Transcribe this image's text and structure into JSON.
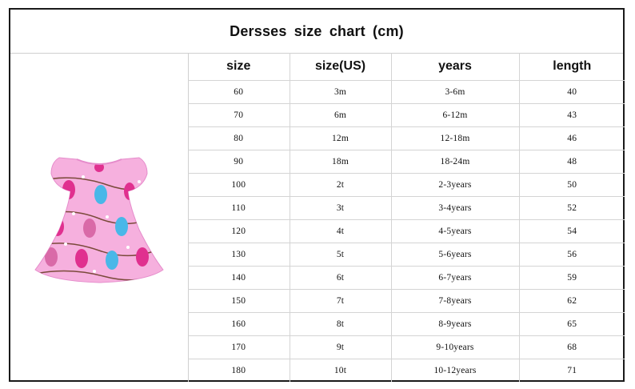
{
  "title": "Dersses  size   chart (cm)",
  "image": {
    "icon": "pink-sloth-dress-icon",
    "main_color": "#f6b0de",
    "accent_colors": [
      "#e0308f",
      "#49b7e8",
      "#7a4a3a"
    ]
  },
  "table": {
    "headers": [
      "size",
      "size(US)",
      "years",
      "length"
    ],
    "rows": [
      [
        "60",
        "3m",
        "3-6m",
        "40"
      ],
      [
        "70",
        "6m",
        "6-12m",
        "43"
      ],
      [
        "80",
        "12m",
        "12-18m",
        "46"
      ],
      [
        "90",
        "18m",
        "18-24m",
        "48"
      ],
      [
        "100",
        "2t",
        "2-3years",
        "50"
      ],
      [
        "110",
        "3t",
        "3-4years",
        "52"
      ],
      [
        "120",
        "4t",
        "4-5years",
        "54"
      ],
      [
        "130",
        "5t",
        "5-6years",
        "56"
      ],
      [
        "140",
        "6t",
        "6-7years",
        "59"
      ],
      [
        "150",
        "7t",
        "7-8years",
        "62"
      ],
      [
        "160",
        "8t",
        "8-9years",
        "65"
      ],
      [
        "170",
        "9t",
        "9-10years",
        "68"
      ],
      [
        "180",
        "10t",
        "10-12years",
        "71"
      ]
    ]
  }
}
